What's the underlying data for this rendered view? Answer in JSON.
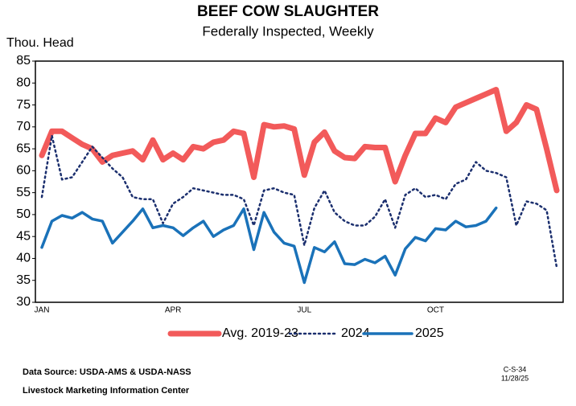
{
  "chart_data": {
    "type": "line",
    "title": "BEEF COW SLAUGHTER",
    "subtitle": "Federally Inspected, Weekly",
    "y_label": "Thou. Head",
    "source": "Data Source:  USDA-AMS & USDA-NASS",
    "credit": "Livestock Marketing Information Center",
    "code": "C-S-34",
    "date": "11/28/25",
    "categories": [
      "JAN",
      null,
      null,
      null,
      null,
      null,
      null,
      null,
      null,
      null,
      null,
      null,
      null,
      "APR",
      null,
      null,
      null,
      null,
      null,
      null,
      null,
      null,
      null,
      null,
      null,
      null,
      "JUL",
      null,
      null,
      null,
      null,
      null,
      null,
      null,
      null,
      null,
      null,
      null,
      null,
      "OCT",
      null,
      null,
      null,
      null,
      null,
      null,
      null,
      null,
      null,
      null,
      null,
      null
    ],
    "series": [
      {
        "name": "Avg. 2019-23",
        "color": "#f25a5a",
        "width": 7,
        "dash": "solid",
        "values": [
          63.5,
          69,
          69,
          67.5,
          66,
          65,
          62,
          63.5,
          64,
          64.5,
          62.5,
          67,
          62.5,
          64,
          62.5,
          65.5,
          65,
          66.5,
          67,
          69,
          68.5,
          58.5,
          70.5,
          70,
          70.2,
          69.5,
          59,
          66.5,
          68.8,
          64.5,
          63,
          62.8,
          65.5,
          65.3,
          65.3,
          57.5,
          63.5,
          68.5,
          68.5,
          72,
          71,
          74.5,
          75.5,
          76.5,
          77.5,
          78.5,
          69,
          71,
          75,
          74,
          65,
          55.5
        ]
      },
      {
        "name": "2024",
        "color": "#1b2f6e",
        "width": 2.5,
        "dash": "dotted",
        "values": [
          54,
          68,
          58,
          58.5,
          62,
          65.5,
          63,
          60.5,
          58.5,
          54,
          53.5,
          53.5,
          48,
          52.5,
          54,
          56,
          55.5,
          55,
          54.5,
          54.5,
          53.5,
          47.5,
          55.5,
          56,
          55,
          54.5,
          43,
          51.5,
          55.5,
          50.5,
          48.5,
          47.5,
          47.5,
          49.5,
          53.5,
          47,
          54.5,
          56,
          54,
          54.5,
          53.5,
          57,
          58,
          62,
          60,
          59.5,
          58.5,
          47.5,
          53,
          52.5,
          51,
          38
        ]
      },
      {
        "name": "2025",
        "color": "#1a72b9",
        "width": 3.5,
        "dash": "solid",
        "values": [
          42.5,
          48.5,
          49.8,
          49.2,
          50.5,
          49,
          48.5,
          43.5,
          46,
          48.5,
          51.3,
          47,
          47.5,
          47,
          45.2,
          47,
          48.5,
          45,
          46.5,
          47.5,
          51.3,
          42,
          50.5,
          46,
          43.5,
          42.8,
          34.5,
          42.5,
          41.5,
          43.8,
          38.8,
          38.6,
          39.8,
          39,
          40.5,
          36.2,
          42.2,
          44.8,
          44,
          46.8,
          46.5,
          48.5,
          47.2,
          47.5,
          48.5,
          51.5,
          null,
          null,
          null,
          null,
          null,
          null
        ]
      }
    ],
    "ylim": [
      30,
      85
    ],
    "yticks": [
      30,
      35,
      40,
      45,
      50,
      55,
      60,
      65,
      70,
      75,
      80,
      85
    ],
    "grid": false,
    "legend": "bottom"
  }
}
